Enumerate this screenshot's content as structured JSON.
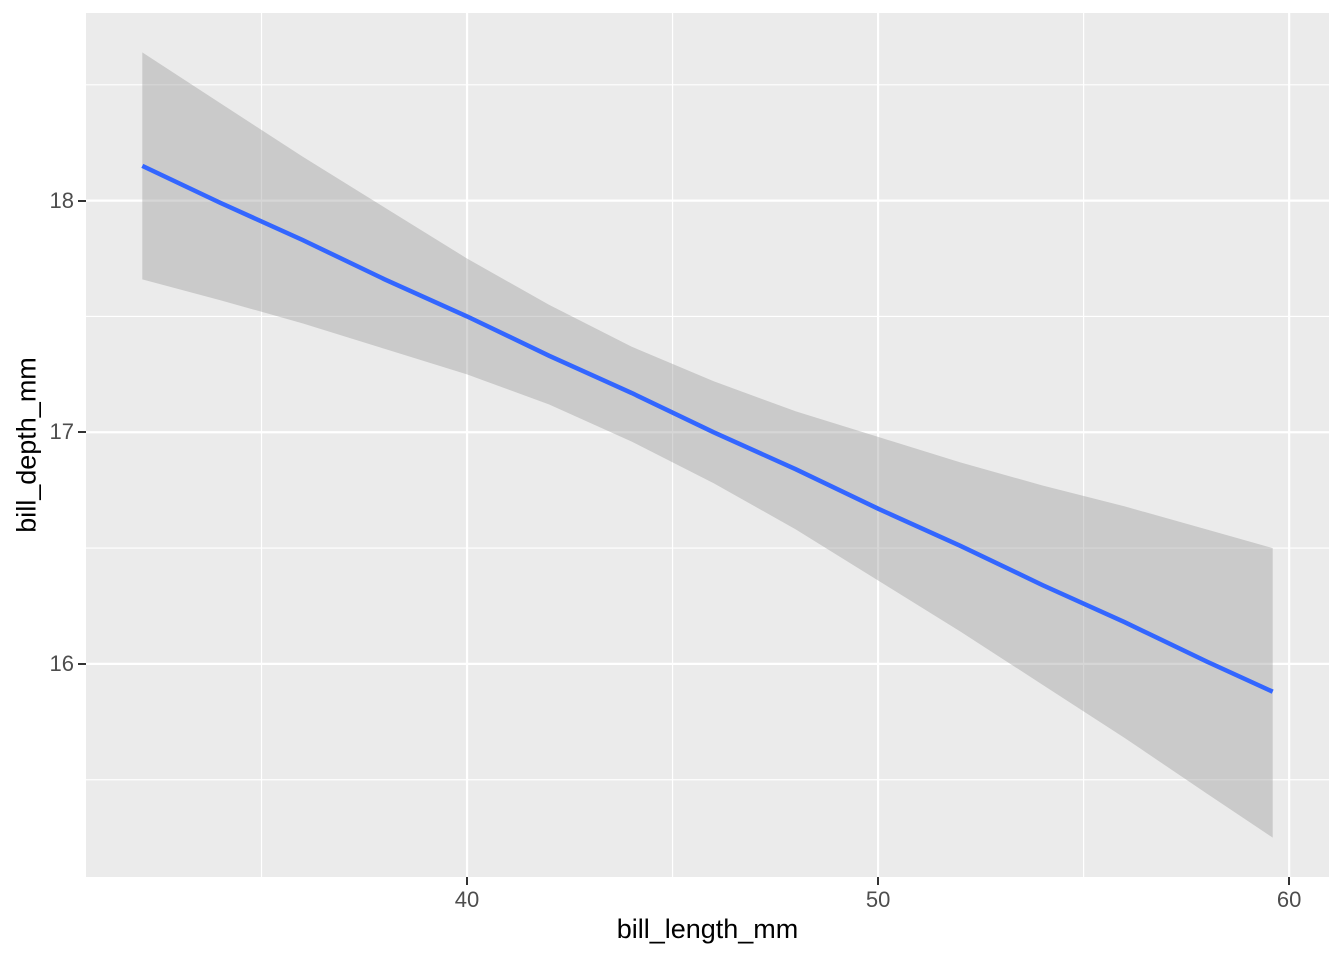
{
  "chart_data": {
    "type": "line",
    "subtype": "linear-regression-fit-with-confidence-band",
    "title": "",
    "xlabel": "bill_length_mm",
    "ylabel": "bill_depth_mm",
    "x": [
      32.1,
      34,
      36,
      38,
      40,
      42,
      44,
      46,
      48,
      50,
      52,
      54,
      56,
      58,
      59.6
    ],
    "series": [
      {
        "name": "fit-line",
        "values": [
          18.15,
          17.99,
          17.83,
          17.66,
          17.5,
          17.33,
          17.17,
          17.0,
          16.84,
          16.67,
          16.51,
          16.34,
          16.18,
          16.01,
          15.88
        ]
      }
    ],
    "ci_lower": [
      17.66,
      17.57,
      17.47,
      17.36,
      17.25,
      17.12,
      16.96,
      16.78,
      16.58,
      16.36,
      16.14,
      15.91,
      15.68,
      15.44,
      15.25
    ],
    "ci_upper": [
      18.64,
      18.42,
      18.19,
      17.97,
      17.75,
      17.55,
      17.37,
      17.22,
      17.09,
      16.98,
      16.87,
      16.77,
      16.68,
      16.58,
      16.5
    ],
    "xlim": [
      30.73,
      60.97
    ],
    "ylim": [
      15.08,
      18.81
    ],
    "x_ticks": [
      "40",
      "50",
      "60"
    ],
    "x_tick_values": [
      40,
      50,
      60
    ],
    "y_ticks": [
      "16",
      "17",
      "18"
    ],
    "y_tick_values": [
      16,
      17,
      18
    ],
    "x_minor_gridlines": [
      35,
      45,
      55
    ],
    "y_minor_gridlines": [
      15.5,
      16.5,
      17.5,
      18.5
    ],
    "grid": true,
    "legend_position": "none",
    "colors": {
      "fit_line": "#3366FF",
      "ci_band": "#999999",
      "ci_band_alpha": 0.4,
      "panel_background": "#EBEBEB",
      "gridline": "#FFFFFF",
      "tick_label": "#4D4D4D",
      "axis_title": "#000000",
      "tick_mark": "#333333",
      "page_background": "#FFFFFF"
    }
  }
}
